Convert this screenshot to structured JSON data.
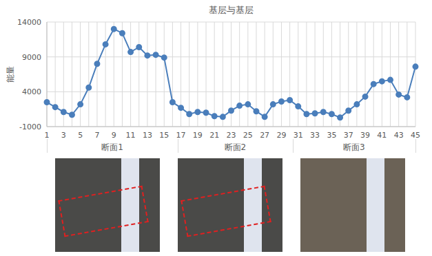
{
  "chart_data": {
    "type": "line",
    "title": "基层与基层",
    "y_label": "能量",
    "categories": [
      "1",
      null,
      "3",
      null,
      "5",
      null,
      "7",
      null,
      "9",
      null,
      "11",
      null,
      "13",
      null,
      "15",
      null,
      "17",
      null,
      "19",
      null,
      "21",
      null,
      "23",
      null,
      "25",
      null,
      "27",
      null,
      "29",
      null,
      "31",
      null,
      "33",
      null,
      "35",
      null,
      "37",
      null,
      "39",
      null,
      "41",
      null,
      "43",
      null,
      "45"
    ],
    "values": [
      2500,
      1800,
      1100,
      700,
      2200,
      4600,
      8000,
      10800,
      13000,
      12400,
      9700,
      10400,
      9200,
      9300,
      8900,
      2500,
      1700,
      800,
      1100,
      1000,
      500,
      400,
      1300,
      2000,
      2200,
      1200,
      400,
      2200,
      2600,
      2800,
      1900,
      800,
      900,
      1100,
      800,
      300,
      1300,
      2200,
      3300,
      5100,
      5500,
      5700,
      3600,
      3200,
      7600
    ],
    "category_groups": [
      {
        "label": "断面1",
        "from": "1",
        "to": "15"
      },
      {
        "label": "断面2",
        "from": "17",
        "to": "29"
      },
      {
        "label": "断面3",
        "from": "31",
        "to": "45"
      }
    ],
    "color": "#4a7ebb",
    "marker": "circle",
    "ylim": [
      -1000,
      14000
    ],
    "yticks": [
      -1000,
      4000,
      9000,
      14000
    ],
    "grid": true
  }
}
